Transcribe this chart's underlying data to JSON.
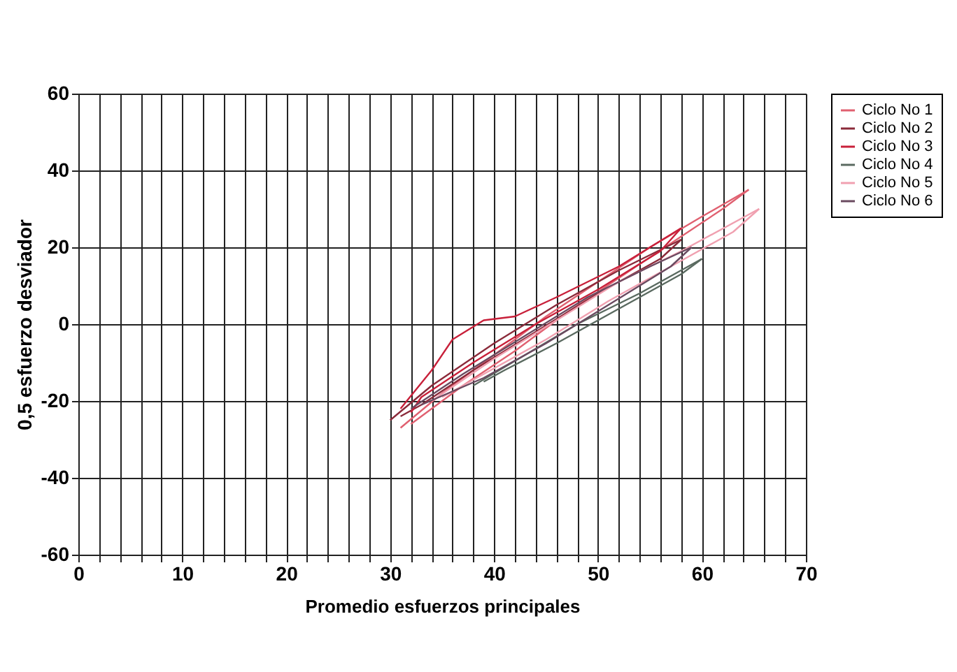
{
  "chart_data": {
    "type": "line",
    "xlabel": "Promedio esfuerzos principales",
    "ylabel": "0,5 esfuerzo desviador",
    "xlim": [
      0,
      70
    ],
    "ylim": [
      -60,
      60
    ],
    "xticks": [
      0,
      {
        "value": 2,
        "label": null
      },
      {
        "value": 4,
        "label": null
      },
      {
        "value": 6,
        "label": null
      },
      {
        "value": 8,
        "label": null
      },
      10,
      {
        "value": 12,
        "label": null
      },
      {
        "value": 14,
        "label": null
      },
      {
        "value": 16,
        "label": null
      },
      {
        "value": 18,
        "label": null
      },
      20,
      {
        "value": 22,
        "label": null
      },
      {
        "value": 24,
        "label": null
      },
      {
        "value": 26,
        "label": null
      },
      {
        "value": 28,
        "label": null
      },
      30,
      {
        "value": 32,
        "label": null
      },
      {
        "value": 34,
        "label": null
      },
      {
        "value": 36,
        "label": null
      },
      {
        "value": 38,
        "label": null
      },
      40,
      {
        "value": 42,
        "label": null
      },
      {
        "value": 44,
        "label": null
      },
      {
        "value": 46,
        "label": null
      },
      {
        "value": 48,
        "label": null
      },
      50,
      {
        "value": 52,
        "label": null
      },
      {
        "value": 54,
        "label": null
      },
      {
        "value": 56,
        "label": null
      },
      {
        "value": 58,
        "label": null
      },
      60,
      {
        "value": 62,
        "label": null
      },
      {
        "value": 64,
        "label": null
      },
      {
        "value": 66,
        "label": null
      },
      {
        "value": 68,
        "label": null
      },
      70
    ],
    "yticks": [
      -60,
      -40,
      -20,
      0,
      20,
      40,
      60
    ],
    "grid": true,
    "legend": "right",
    "marker": "none",
    "line_style": "solid",
    "series": [
      {
        "name": "Ciclo No 1",
        "color": "#e06070",
        "x": [
          31,
          35,
          40,
          45,
          50,
          55,
          60,
          64.5
        ],
        "values": [
          -27,
          -18,
          -8,
          2,
          11,
          20,
          28,
          35
        ]
      },
      {
        "color": "#e06070",
        "x": [
          32,
          33,
          37,
          42,
          47,
          52,
          57,
          62,
          64.5
        ],
        "values": [
          -26,
          -24,
          -16,
          -7,
          3,
          12,
          21,
          30,
          35
        ]
      },
      {
        "name": "Ciclo No 2",
        "color": "#8b2a3a",
        "x": [
          30,
          34,
          40,
          46,
          52,
          58
        ],
        "values": [
          -25,
          -16,
          -5,
          5,
          14,
          22
        ]
      },
      {
        "color": "#8b2a3a",
        "x": [
          31,
          33,
          38,
          44,
          50,
          56,
          58
        ],
        "values": [
          -24,
          -21,
          -12,
          -2,
          8,
          17,
          22
        ]
      },
      {
        "name": "Ciclo No 3",
        "color": "#c8203a",
        "x": [
          31,
          34,
          36,
          39,
          42,
          46,
          52,
          58
        ],
        "values": [
          -22,
          -12,
          -4,
          1,
          2,
          7,
          15,
          25
        ]
      },
      {
        "color": "#c8203a",
        "x": [
          32,
          33,
          38,
          44,
          50,
          56,
          58
        ],
        "values": [
          -23,
          -19,
          -10,
          0,
          9,
          19,
          25
        ]
      },
      {
        "name": "Ciclo No 4",
        "color": "#5a6a60",
        "x": [
          38,
          43,
          48,
          54,
          60
        ],
        "values": [
          -16,
          -8,
          0,
          8,
          17
        ]
      },
      {
        "color": "#5a6a60",
        "x": [
          39,
          41,
          46,
          52,
          58,
          60
        ],
        "values": [
          -15,
          -12,
          -5,
          4,
          13,
          17
        ]
      },
      {
        "name": "Ciclo No 5",
        "color": "#f0a0b0",
        "x": [
          34,
          40,
          46,
          52,
          58,
          65.5
        ],
        "values": [
          -20,
          -9,
          1,
          11,
          19,
          30
        ]
      },
      {
        "color": "#f0a0b0",
        "x": [
          35,
          39,
          45,
          51,
          57,
          63,
          65.5
        ],
        "values": [
          -19,
          -13,
          -4,
          6,
          15,
          24,
          30
        ]
      },
      {
        "name": "Ciclo No 6",
        "color": "#6a4a60",
        "x": [
          32,
          37,
          43,
          49,
          55,
          59
        ],
        "values": [
          -22,
          -13,
          -3,
          7,
          15,
          20
        ]
      },
      {
        "color": "#6a4a60",
        "x": [
          33,
          39,
          45,
          51,
          57,
          59
        ],
        "values": [
          -21,
          -14,
          -5,
          5,
          15,
          20
        ]
      }
    ]
  }
}
